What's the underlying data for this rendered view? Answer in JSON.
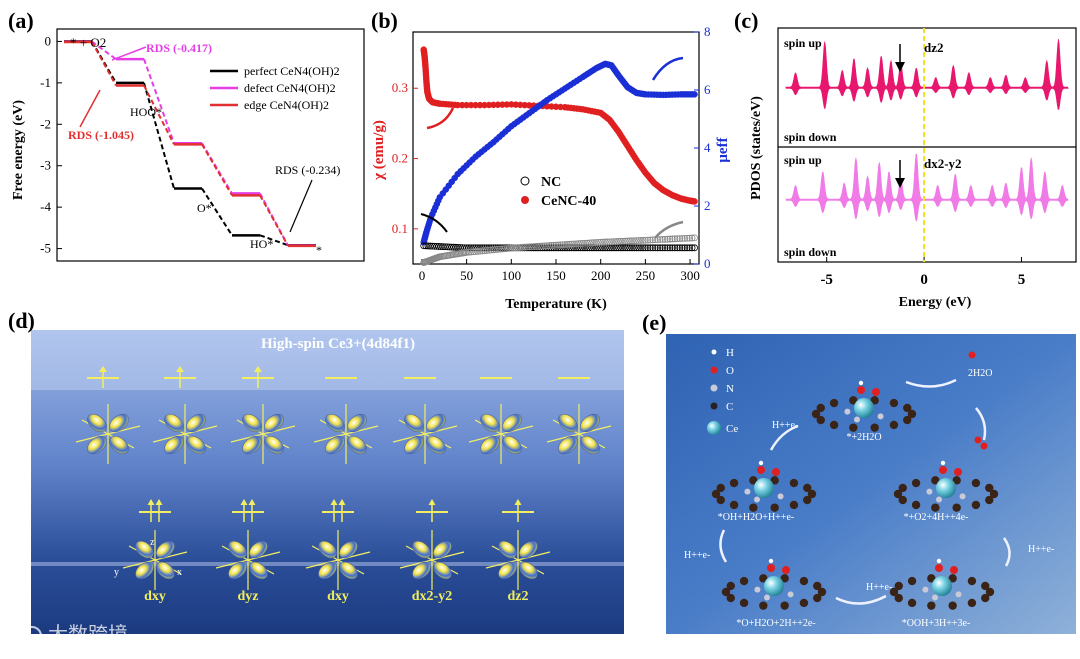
{
  "panels": {
    "a": "(a)",
    "b": "(b)",
    "c": "(c)",
    "d": "(d)",
    "e": "(e)"
  },
  "chart_data": [
    {
      "id": "a",
      "type": "line",
      "title": "",
      "ylabel": "Free energy (eV)",
      "xlabel": "",
      "ylim": [
        -5.3,
        0.3
      ],
      "yticks": [
        "0",
        "-1",
        "-2",
        "-3",
        "-4",
        "-5"
      ],
      "steps": [
        "*+O2",
        "HOO*",
        "O*",
        "HO*",
        "*"
      ],
      "series": [
        {
          "name": "perfect CeN4(OH)2",
          "color": "#000000",
          "values": [
            0,
            -1.0,
            -3.55,
            -4.68,
            -4.92
          ]
        },
        {
          "name": "defect CeN4(OH)2",
          "color": "#e63ee6",
          "values": [
            0,
            -0.42,
            -2.45,
            -3.66,
            -4.92
          ]
        },
        {
          "name": "edge CeN4(OH)2",
          "color": "#e03030",
          "values": [
            0,
            -1.05,
            -2.47,
            -3.7,
            -4.92
          ]
        }
      ],
      "annotations": {
        "start": "* + O2",
        "rds1": "RDS (-0.417)",
        "rds2": "RDS (-1.045)",
        "rds3": "RDS (-0.234)",
        "hoo": "HOO*",
        "o": "O*",
        "ho": "HO*",
        "star": "*"
      },
      "legend": {
        "perfect": "perfect CeN4(OH)2",
        "defect": "defect CeN4(OH)2",
        "edge": "edge CeN4(OH)2"
      }
    },
    {
      "id": "b",
      "type": "scatter",
      "xlabel": "Temperature (K)",
      "ylabel_left": "χ (emu/g)",
      "ylabel_right": "μeff",
      "xlim": [
        -10,
        310
      ],
      "ylim_left": [
        0.05,
        0.38
      ],
      "ylim_right": [
        0,
        8
      ],
      "xticks": [
        "0",
        "50",
        "100",
        "150",
        "200",
        "250",
        "300"
      ],
      "yticks_left": [
        "0.1",
        "0.2",
        "0.3"
      ],
      "yticks_right": [
        "0",
        "2",
        "4",
        "6",
        "8"
      ],
      "series": [
        {
          "name": "CeNC-40 χ",
          "axis": "left",
          "color": "#e02020",
          "x": [
            2,
            3,
            4,
            5,
            6,
            8,
            12,
            20,
            40,
            70,
            100,
            130,
            160,
            180,
            200,
            210,
            220,
            230,
            240,
            250,
            260,
            270,
            280,
            290,
            300,
            305
          ],
          "y": [
            0.355,
            0.345,
            0.33,
            0.31,
            0.295,
            0.285,
            0.28,
            0.278,
            0.276,
            0.276,
            0.277,
            0.275,
            0.273,
            0.27,
            0.265,
            0.255,
            0.238,
            0.218,
            0.198,
            0.18,
            0.165,
            0.155,
            0.148,
            0.143,
            0.14,
            0.139
          ]
        },
        {
          "name": "CeNC-40 μeff",
          "axis": "right",
          "color": "#1a2fd6",
          "x": [
            2,
            5,
            10,
            20,
            40,
            60,
            80,
            100,
            120,
            140,
            160,
            180,
            195,
            205,
            212,
            220,
            230,
            240,
            250,
            270,
            290,
            305
          ],
          "y": [
            0.75,
            1.1,
            1.6,
            2.3,
            3.1,
            3.7,
            4.2,
            4.75,
            5.2,
            5.65,
            6.05,
            6.45,
            6.75,
            6.9,
            6.85,
            6.5,
            6.1,
            5.9,
            5.85,
            5.83,
            5.85,
            5.85
          ]
        },
        {
          "name": "NC χ",
          "axis": "left",
          "color": "#000000",
          "x": [
            2,
            50,
            100,
            150,
            200,
            250,
            305
          ],
          "y": [
            0.076,
            0.073,
            0.073,
            0.073,
            0.073,
            0.073,
            0.073
          ]
        },
        {
          "name": "NC μeff",
          "axis": "right",
          "color": "#888888",
          "x": [
            2,
            20,
            50,
            100,
            150,
            200,
            250,
            305
          ],
          "y": [
            0.05,
            0.25,
            0.4,
            0.55,
            0.65,
            0.75,
            0.82,
            0.9
          ]
        }
      ],
      "legend": {
        "nc": "NC",
        "cenc": "CeNC-40"
      }
    },
    {
      "id": "c",
      "type": "area",
      "xlabel": "Energy (eV)",
      "ylabel": "PDOS (states/eV)",
      "xlim": [
        -7.5,
        7.8
      ],
      "xticks": [
        "-5",
        "0",
        "5"
      ],
      "spin_up": "spin up",
      "spin_down": "spin down",
      "top_orbital": "dz2",
      "bottom_orbital": "dx2-y2",
      "top_color": "#e8176e",
      "bottom_color": "#f07ae6",
      "fermi_level": 0
    }
  ],
  "panel_d": {
    "title": "High-spin Ce3+(4d84f1)",
    "orbitals": [
      "dxy",
      "dyz",
      "dxy",
      "dx2-y2",
      "dz2"
    ],
    "axes": [
      "z",
      "y",
      "x"
    ]
  },
  "panel_e": {
    "legend": [
      "H",
      "O",
      "N",
      "C",
      "Ce"
    ],
    "states": [
      "*+2H2O",
      "*+O2+4H++4e-",
      "*OOH+3H++3e-",
      "*O+H2O+2H++2e-",
      "*OH+H2O+H++e-"
    ],
    "steps": [
      "2H2O",
      "H++e-",
      "H++e-",
      "H++e-",
      "H++e-"
    ]
  },
  "watermark": "大数跨境"
}
